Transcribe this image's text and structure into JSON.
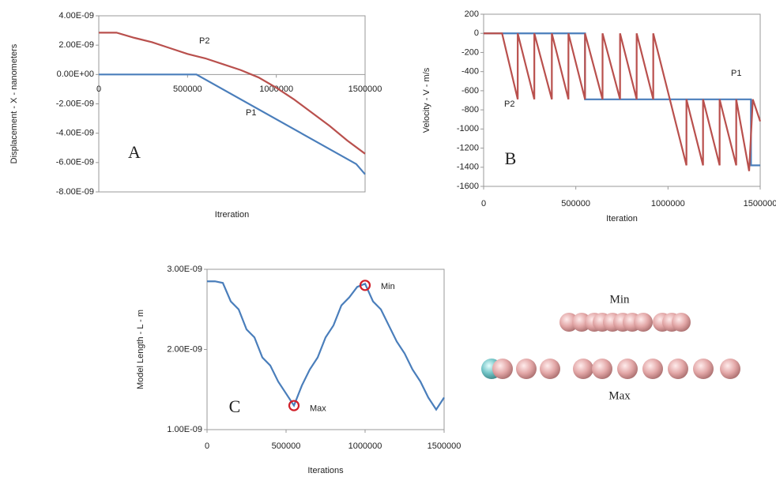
{
  "chart_data": [
    {
      "type": "line",
      "panel_label": "A",
      "xlabel": "Itreration",
      "ylabel": "Displacement - X - nanometers",
      "xlim": [
        0,
        1500000
      ],
      "xticks": [
        0,
        500000,
        1000000,
        1500000
      ],
      "ylim": [
        -8e-09,
        4e-09
      ],
      "yticks": [
        {
          "value": -8e-09,
          "label": "-8.00E-09"
        },
        {
          "value": -6e-09,
          "label": "-6.00E-09"
        },
        {
          "value": -4e-09,
          "label": "-4.00E-09"
        },
        {
          "value": -2e-09,
          "label": "-2.00E-09"
        },
        {
          "value": 0,
          "label": "0.00E+00"
        },
        {
          "value": 2e-09,
          "label": "2.00E-09"
        },
        {
          "value": 4e-09,
          "label": "4.00E-09"
        }
      ],
      "series": [
        {
          "name": "P1",
          "color": "#4a7ebb",
          "x": [
            0,
            550000,
            1450000,
            1500000
          ],
          "values": [
            0,
            0,
            -6.1e-09,
            -6.8e-09
          ]
        },
        {
          "name": "P2",
          "color": "#b9504d",
          "x": [
            0,
            100000,
            200000,
            300000,
            400000,
            500000,
            600000,
            700000,
            800000,
            900000,
            1000000,
            1100000,
            1200000,
            1300000,
            1400000,
            1500000
          ],
          "values": [
            2.85e-09,
            2.85e-09,
            2.5e-09,
            2.2e-09,
            1.8e-09,
            1.4e-09,
            1.1e-09,
            7e-10,
            3e-10,
            -2e-10,
            -9e-10,
            -1.7e-09,
            -2.6e-09,
            -3.5e-09,
            -4.5e-09,
            -5.4e-09
          ]
        }
      ]
    },
    {
      "type": "line",
      "panel_label": "B",
      "xlabel": "Iteration",
      "ylabel": "Velocity - V - m/s",
      "xlim": [
        0,
        1500000
      ],
      "xticks": [
        0,
        500000,
        1000000,
        1500000
      ],
      "ylim": [
        -1600,
        200
      ],
      "yticks": [
        -1600,
        -1400,
        -1200,
        -1000,
        -800,
        -600,
        -400,
        -200,
        0,
        200
      ],
      "series": [
        {
          "name": "P1",
          "color": "#4a7ebb",
          "x": [
            0,
            550000,
            550000,
            1450000,
            1450000,
            1500000
          ],
          "values": [
            0,
            0,
            -690,
            -690,
            -1380,
            -1380
          ]
        },
        {
          "name": "P2",
          "color": "#b9504d",
          "x": [
            0,
            100000,
            185000,
            185000,
            275000,
            275000,
            370000,
            370000,
            460000,
            460000,
            550000,
            550000,
            645000,
            645000,
            740000,
            740000,
            830000,
            830000,
            920000,
            920000,
            1100000,
            1100000,
            1190000,
            1190000,
            1280000,
            1280000,
            1370000,
            1370000,
            1440000,
            1460000,
            1500000
          ],
          "values": [
            0,
            0,
            -690,
            0,
            -690,
            0,
            -690,
            0,
            -690,
            0,
            -690,
            0,
            -690,
            0,
            -690,
            0,
            -690,
            0,
            -690,
            0,
            -1380,
            -690,
            -1380,
            -690,
            -1380,
            -690,
            -1380,
            -690,
            -1440,
            -690,
            -920
          ]
        }
      ]
    },
    {
      "type": "line",
      "panel_label": "C",
      "xlabel": "Iterations",
      "ylabel": "Model Length  - L - m",
      "xlim": [
        0,
        1500000
      ],
      "xticks": [
        0,
        500000,
        1000000,
        1500000
      ],
      "ylim": [
        1e-09,
        3e-09
      ],
      "yticks": [
        {
          "value": 1e-09,
          "label": "1.00E-09"
        },
        {
          "value": 2e-09,
          "label": "2.00E-09"
        },
        {
          "value": 3e-09,
          "label": "3.00E-09"
        }
      ],
      "series": [
        {
          "color": "#4a7ebb",
          "x": [
            0,
            50000,
            100000,
            150000,
            200000,
            250000,
            300000,
            350000,
            400000,
            450000,
            500000,
            550000,
            600000,
            650000,
            700000,
            750000,
            800000,
            850000,
            900000,
            950000,
            1000000,
            1050000,
            1100000,
            1150000,
            1200000,
            1250000,
            1300000,
            1350000,
            1400000,
            1450000,
            1500000
          ],
          "values": [
            2.85e-09,
            2.85e-09,
            2.83e-09,
            2.6e-09,
            2.5e-09,
            2.25e-09,
            2.15e-09,
            1.9e-09,
            1.8e-09,
            1.6e-09,
            1.45e-09,
            1.3e-09,
            1.55e-09,
            1.75e-09,
            1.9e-09,
            2.15e-09,
            2.3e-09,
            2.55e-09,
            2.65e-09,
            2.78e-09,
            2.82e-09,
            2.6e-09,
            2.5e-09,
            2.3e-09,
            2.1e-09,
            1.95e-09,
            1.75e-09,
            1.6e-09,
            1.4e-09,
            1.25e-09,
            1.4e-09
          ]
        }
      ],
      "markers": [
        {
          "label": "Max",
          "x": 550000,
          "y": 1.3e-09
        },
        {
          "label": "Min",
          "x": 1000000,
          "y": 2.8e-09
        }
      ]
    }
  ],
  "illustration": {
    "top_label": "Min",
    "bottom_label": "Max"
  }
}
